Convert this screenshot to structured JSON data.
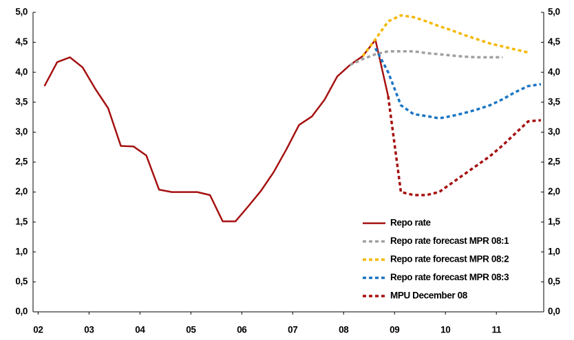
{
  "chart_data": {
    "type": "line",
    "xlim": [
      2001.9,
      2011.93
    ],
    "xticks": [
      {
        "value": 2002,
        "label": "02"
      },
      {
        "value": 2003,
        "label": "03"
      },
      {
        "value": 2004,
        "label": "04"
      },
      {
        "value": 2005,
        "label": "05"
      },
      {
        "value": 2006,
        "label": "06"
      },
      {
        "value": 2007,
        "label": "07"
      },
      {
        "value": 2008,
        "label": "08"
      },
      {
        "value": 2009,
        "label": "09"
      },
      {
        "value": 2010,
        "label": "10"
      },
      {
        "value": 2011,
        "label": "11"
      }
    ],
    "ylim": [
      0,
      5
    ],
    "yticks": [
      {
        "value": 0,
        "label": "0,0"
      },
      {
        "value": 0.5,
        "label": "0,5"
      },
      {
        "value": 1,
        "label": "1,0"
      },
      {
        "value": 1.5,
        "label": "1,5"
      },
      {
        "value": 2,
        "label": "2,0"
      },
      {
        "value": 2.5,
        "label": "2,5"
      },
      {
        "value": 3,
        "label": "3,0"
      },
      {
        "value": 3.5,
        "label": "3,5"
      },
      {
        "value": 4,
        "label": "4,0"
      },
      {
        "value": 4.5,
        "label": "4,5"
      },
      {
        "value": 5,
        "label": "5,0"
      }
    ],
    "y2lim": [
      0,
      5
    ],
    "y2ticks": [
      {
        "value": 0,
        "label": "0,0"
      },
      {
        "value": 0.5,
        "label": "0,5"
      },
      {
        "value": 1,
        "label": "1,0"
      },
      {
        "value": 1.5,
        "label": "1,5"
      },
      {
        "value": 2,
        "label": "2,0"
      },
      {
        "value": 2.5,
        "label": "2,5"
      },
      {
        "value": 3,
        "label": "3,0"
      },
      {
        "value": 3.5,
        "label": "3,5"
      },
      {
        "value": 4,
        "label": "4,0"
      },
      {
        "value": 4.5,
        "label": "4,5"
      },
      {
        "value": 5,
        "label": "5,0"
      }
    ],
    "grid": false,
    "legend": "lower right",
    "series": [
      {
        "name": "Repo rate",
        "color": "#a50f0f",
        "style": "solid",
        "x": [
          2002.125,
          2002.375,
          2002.625,
          2002.875,
          2003.125,
          2003.375,
          2003.625,
          2003.875,
          2004.125,
          2004.375,
          2004.625,
          2004.875,
          2005.125,
          2005.375,
          2005.625,
          2005.875,
          2006.125,
          2006.375,
          2006.625,
          2006.875,
          2007.125,
          2007.375,
          2007.625,
          2007.875,
          2008.125,
          2008.375,
          2008.625,
          2008.875
        ],
        "values": [
          3.77,
          4.17,
          4.25,
          4.08,
          3.72,
          3.4,
          2.77,
          2.76,
          2.61,
          2.04,
          2.0,
          2.0,
          2.0,
          1.95,
          1.51,
          1.51,
          1.76,
          2.02,
          2.33,
          2.71,
          3.12,
          3.26,
          3.54,
          3.93,
          4.12,
          4.27,
          4.54,
          3.6
        ]
      },
      {
        "name": "Repo rate forecast MPR 08:1",
        "color": "#a0a0a0",
        "style": "dashed",
        "x": [
          2008.125,
          2008.375,
          2008.625,
          2008.875,
          2009.125,
          2009.375,
          2009.625,
          2009.875,
          2010.125,
          2010.375,
          2010.625,
          2010.875,
          2011.125
        ],
        "values": [
          4.12,
          4.22,
          4.3,
          4.35,
          4.35,
          4.35,
          4.32,
          4.3,
          4.28,
          4.26,
          4.25,
          4.25,
          4.25
        ]
      },
      {
        "name": "Repo rate forecast MPR 08:2",
        "color": "#f5b800",
        "style": "dashed",
        "x": [
          2008.375,
          2008.625,
          2008.875,
          2009.125,
          2009.375,
          2009.625,
          2009.875,
          2010.125,
          2010.375,
          2010.625,
          2010.875,
          2011.125,
          2011.375,
          2011.625
        ],
        "values": [
          4.27,
          4.55,
          4.85,
          4.95,
          4.92,
          4.85,
          4.77,
          4.7,
          4.62,
          4.55,
          4.48,
          4.43,
          4.38,
          4.33
        ]
      },
      {
        "name": "Repo rate forecast MPR 08:3",
        "color": "#1a75c4",
        "style": "dashed",
        "x": [
          2008.625,
          2008.875,
          2009.125,
          2009.375,
          2009.625,
          2009.875,
          2010.125,
          2010.375,
          2010.625,
          2010.875,
          2011.125,
          2011.375,
          2011.625,
          2011.875
        ],
        "values": [
          4.4,
          4.0,
          3.45,
          3.3,
          3.27,
          3.23,
          3.27,
          3.32,
          3.38,
          3.45,
          3.55,
          3.67,
          3.77,
          3.8
        ]
      },
      {
        "name": "MPU December 08",
        "color": "#a50f0f",
        "style": "dashed",
        "x": [
          2008.875,
          2009.125,
          2009.375,
          2009.625,
          2009.875,
          2010.125,
          2010.375,
          2010.625,
          2010.875,
          2011.125,
          2011.375,
          2011.625,
          2011.875
        ],
        "values": [
          3.6,
          2.0,
          1.95,
          1.95,
          2.0,
          2.15,
          2.3,
          2.45,
          2.6,
          2.78,
          2.98,
          3.18,
          3.2
        ]
      }
    ]
  }
}
